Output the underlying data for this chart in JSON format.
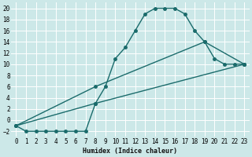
{
  "xlabel": "Humidex (Indice chaleur)",
  "background_color": "#cce8e8",
  "grid_color": "#ffffff",
  "line_color": "#1a6b6b",
  "xlim": [
    -0.5,
    23.5
  ],
  "ylim": [
    -3,
    21
  ],
  "xticks": [
    0,
    1,
    2,
    3,
    4,
    5,
    6,
    7,
    8,
    9,
    10,
    11,
    12,
    13,
    14,
    15,
    16,
    17,
    18,
    19,
    20,
    21,
    22,
    23
  ],
  "yticks": [
    -2,
    0,
    2,
    4,
    6,
    8,
    10,
    12,
    14,
    16,
    18,
    20
  ],
  "line1_x": [
    0,
    1,
    2,
    3,
    4,
    5,
    6,
    7,
    8,
    9,
    10,
    11,
    12,
    13,
    14,
    15,
    16,
    17,
    18,
    19,
    20,
    21,
    22,
    23
  ],
  "line1_y": [
    -1,
    -2,
    -2,
    -2,
    -2,
    -2,
    -2,
    -2,
    3,
    6,
    11,
    13,
    16,
    19,
    20,
    20,
    20,
    19,
    16,
    14,
    11,
    10,
    10,
    10
  ],
  "line2_x": [
    0,
    8,
    19,
    23
  ],
  "line2_y": [
    -1,
    6,
    14,
    10
  ],
  "line3_x": [
    0,
    8,
    23
  ],
  "line3_y": [
    -1,
    3,
    10
  ],
  "marker_size": 2.5,
  "line_width": 1.0,
  "xlabel_fontsize": 6,
  "tick_fontsize": 5.5
}
